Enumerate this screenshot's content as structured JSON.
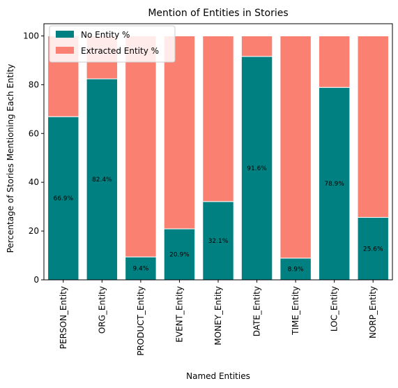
{
  "chart_data": {
    "type": "bar",
    "stacked": true,
    "title": "Mention of Entities in Stories",
    "xlabel": "Named Entities",
    "ylabel": "Percentage of Stories Mentioning Each Entity",
    "ylim": [
      0,
      105
    ],
    "yticks": [
      0,
      20,
      40,
      60,
      80,
      100
    ],
    "categories": [
      "PERSON_Entity",
      "ORG_Entity",
      "PRODUCT_Entity",
      "EVENT_Entity",
      "MONEY_Entity",
      "DATE_Entity",
      "TIME_Entity",
      "LOC_Entity",
      "NORP_Entity"
    ],
    "series": [
      {
        "name": "No Entity %",
        "color": "#008080",
        "values": [
          66.9,
          82.4,
          9.4,
          20.9,
          32.1,
          91.6,
          8.9,
          78.9,
          25.6
        ]
      },
      {
        "name": "Extracted Entity %",
        "color": "#fa8072",
        "values": [
          33.1,
          17.6,
          90.6,
          79.1,
          67.9,
          8.4,
          91.1,
          21.1,
          74.4
        ]
      }
    ],
    "data_labels": [
      "66.9%",
      "82.4%",
      "9.4%",
      "20.9%",
      "32.1%",
      "91.6%",
      "8.9%",
      "78.9%",
      "25.6%"
    ],
    "legend_position": "top-left",
    "grid": false
  }
}
